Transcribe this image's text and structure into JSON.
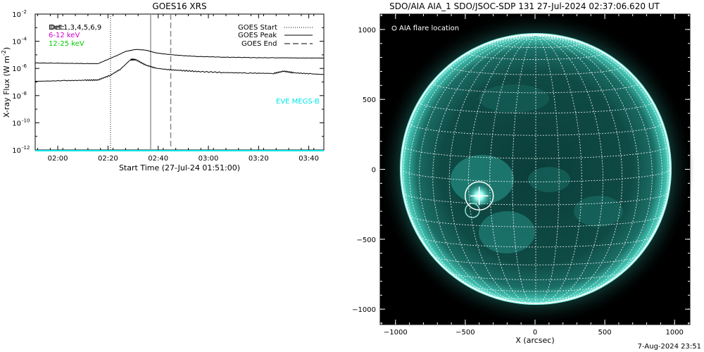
{
  "goes_panel": {
    "title": "GOES16 XRS",
    "ylabel": "X-ray Flux (W m",
    "ylabel_exp": "-2",
    "ylabel_tail": ")",
    "xlabel": "Start Time (27-Jul-24 01:51:00)",
    "det_label": "Det:",
    "det_overlap": "Det:1,3,4,5,6,9",
    "bands": [
      {
        "text": "6-12 keV",
        "color": "#d000d0"
      },
      {
        "text": "12-25 keV",
        "color": "#00cc00"
      }
    ],
    "legend": [
      {
        "text": "GOES Start",
        "style": "dotted"
      },
      {
        "text": "GOES Peak",
        "style": "solid"
      },
      {
        "text": "GOES End",
        "style": "dashed"
      }
    ],
    "eve_label": "EVE MEGS-B",
    "eve_color": "#00e5e5",
    "y_ticks": [
      {
        "base": "10",
        "exp": "-2",
        "value": -2
      },
      {
        "base": "10",
        "exp": "-4",
        "value": -4
      },
      {
        "base": "10",
        "exp": "-6",
        "value": -6
      },
      {
        "base": "10",
        "exp": "-8",
        "value": -8
      },
      {
        "base": "10",
        "exp": "-10",
        "value": -10
      },
      {
        "base": "10",
        "exp": "-12",
        "value": -12
      }
    ],
    "x_ticks": [
      {
        "label": "02:00",
        "minutes": 9
      },
      {
        "label": "02:20",
        "minutes": 29
      },
      {
        "label": "02:40",
        "minutes": 49
      },
      {
        "label": "03:00",
        "minutes": 69
      },
      {
        "label": "03:20",
        "minutes": 89
      },
      {
        "label": "03:40",
        "minutes": 109
      }
    ]
  },
  "chart_data": [
    {
      "type": "line",
      "title": "GOES16 XRS",
      "xlabel": "Start Time (27-Jul-24 01:51:00)",
      "ylabel": "X-ray Flux (W m^-2)",
      "yscale": "log",
      "ylim": [
        1e-12,
        0.01
      ],
      "x_unit": "minutes after 01:51:00",
      "xlim": [
        0,
        115
      ],
      "series": [
        {
          "name": "long channel",
          "color": "#000000",
          "x": [
            0,
            12,
            20,
            25,
            32,
            36,
            40,
            44,
            48,
            52,
            58,
            65,
            75,
            85,
            95,
            100,
            105,
            110,
            115
          ],
          "log10_y": [
            -5.6,
            -5.62,
            -5.64,
            -5.65,
            -5.1,
            -4.75,
            -4.6,
            -4.65,
            -4.85,
            -4.95,
            -5.05,
            -5.12,
            -5.17,
            -5.2,
            -5.22,
            -5.22,
            -5.23,
            -5.23,
            -5.24
          ]
        },
        {
          "name": "short channel",
          "color": "#000000",
          "x": [
            0,
            12,
            20,
            25,
            30,
            34,
            38,
            40,
            44,
            48,
            52,
            58,
            65,
            75,
            85,
            95,
            99,
            103,
            110,
            115
          ],
          "log10_y": [
            -6.95,
            -6.9,
            -6.87,
            -6.85,
            -6.5,
            -6.05,
            -5.35,
            -5.35,
            -5.75,
            -5.98,
            -6.07,
            -6.15,
            -6.23,
            -6.3,
            -6.34,
            -6.37,
            -6.2,
            -6.32,
            -6.4,
            -6.45
          ]
        },
        {
          "name": "EVE MEGS-B",
          "color": "#00e5e5",
          "x": [
            0,
            115
          ],
          "log10_y": [
            -12.05,
            -12.05
          ]
        }
      ],
      "vertical_markers": [
        {
          "name": "GOES Start",
          "style": "dotted",
          "time": "02:21",
          "x": 30
        },
        {
          "name": "GOES Peak",
          "style": "solid",
          "time": "02:37",
          "x": 46
        },
        {
          "name": "GOES End",
          "style": "dashed",
          "time": "02:45",
          "x": 54
        }
      ]
    },
    {
      "type": "scatter",
      "title": "SDO/AIA AIA_1 SDO/JSOC-SDP 131 27-Jul-2024 02:37:06.620 UT",
      "xlabel": "X (arcsec)",
      "ylabel": "",
      "xlim": [
        -1110,
        1110
      ],
      "ylim": [
        -1110,
        1110
      ],
      "grid": "heliographic 10° grid",
      "points": [
        {
          "name": "AIA flare location",
          "x": -400,
          "y": -190
        }
      ]
    }
  ],
  "aia_panel": {
    "title": "SDO/AIA AIA_1 SDO/JSOC-SDP 131 27-Jul-2024 02:37:06.620 UT",
    "xlabel": "X (arcsec)",
    "legend": "AIA flare location",
    "x_ticks": [
      {
        "label": "−1000",
        "v": -1000
      },
      {
        "label": "−500",
        "v": -500
      },
      {
        "label": "0",
        "v": 0
      },
      {
        "label": "500",
        "v": 500
      },
      {
        "label": "1000",
        "v": 1000
      }
    ],
    "y_ticks": [
      {
        "label": "1000",
        "v": 1000
      },
      {
        "label": "500",
        "v": 500
      },
      {
        "label": "0",
        "v": 0
      },
      {
        "label": "−500",
        "v": -500
      },
      {
        "label": "−1000",
        "v": -1000
      }
    ],
    "flare": {
      "x": -400,
      "y": -190
    },
    "colors": {
      "disk": "#0f4d48",
      "bright": "#6ff5e6",
      "grid": "#ffffff"
    }
  },
  "footer": {
    "timestamp": "7-Aug-2024 23:51"
  }
}
